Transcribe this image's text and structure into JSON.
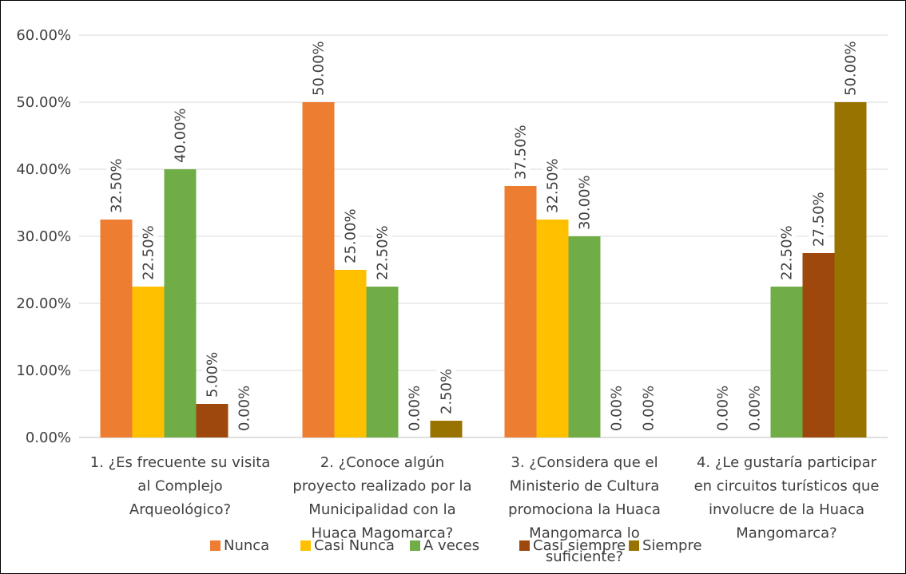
{
  "chart_data": {
    "type": "bar",
    "title": "",
    "xlabel": "",
    "ylabel": "",
    "ylim": [
      0,
      0.6
    ],
    "y_ticks": [
      "0.00%",
      "10.00%",
      "20.00%",
      "30.00%",
      "40.00%",
      "50.00%",
      "60.00%"
    ],
    "grid": true,
    "legend_position": "bottom",
    "categories": [
      [
        "1. ¿Es frecuente su visita",
        "al Complejo",
        "Arqueológico?"
      ],
      [
        "2. ¿Conoce algún",
        "proyecto realizado por la",
        "Municipalidad con la",
        "Huaca Magomarca?"
      ],
      [
        "3. ¿Considera que el",
        "Ministerio de Cultura",
        "promociona la Huaca",
        "Mangomarca lo",
        "suficiente?"
      ],
      [
        "4. ¿Le gustaría participar",
        "en circuitos turísticos que",
        "involucre de la Huaca",
        "Mangomarca?"
      ]
    ],
    "series": [
      {
        "name": "Nunca",
        "color": "#ED7D31",
        "values": [
          0.325,
          0.5,
          0.375,
          0
        ],
        "labels": [
          "32.50%",
          "50.00%",
          "37.50%",
          "0.00%"
        ]
      },
      {
        "name": "Casi Nunca",
        "color": "#FFC000",
        "values": [
          0.225,
          0.25,
          0.325,
          0
        ],
        "labels": [
          "22.50%",
          "25.00%",
          "32.50%",
          "0.00%"
        ]
      },
      {
        "name": "A veces",
        "color": "#70AD47",
        "values": [
          0.4,
          0.225,
          0.3,
          0.225
        ],
        "labels": [
          "40.00%",
          "22.50%",
          "30.00%",
          "22.50%"
        ]
      },
      {
        "name": "Casi siempre",
        "color": "#9E480E",
        "values": [
          0.05,
          0,
          0,
          0.275
        ],
        "labels": [
          "5.00%",
          "0.00%",
          "0.00%",
          "27.50%"
        ]
      },
      {
        "name": "Siempre",
        "color": "#997300",
        "values": [
          0,
          0.025,
          0,
          0.5
        ],
        "labels": [
          "0.00%",
          "2.50%",
          "0.00%",
          "50.00%"
        ]
      }
    ]
  }
}
